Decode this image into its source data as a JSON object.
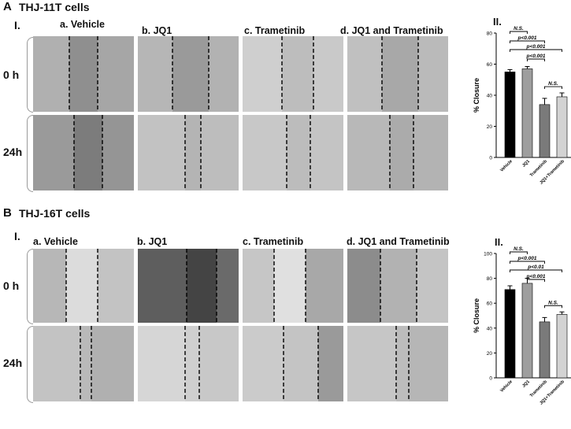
{
  "panels": [
    {
      "letter": "A",
      "title": "THJ-11T cells",
      "images_label": "I.",
      "columns": [
        "a. Vehicle",
        "b. JQ1",
        "c. Trametinib",
        "d. JQ1 and Trametinib"
      ],
      "rows": [
        "0 h",
        "24h"
      ],
      "chart_label": "II."
    },
    {
      "letter": "B",
      "title": "THJ-16T cells",
      "images_label": "I.",
      "columns": [
        "a. Vehicle",
        "b. JQ1",
        "c. Trametinib",
        "d. JQ1 and Trametinib"
      ],
      "rows": [
        "0 h",
        "24h"
      ],
      "chart_label": "II."
    }
  ],
  "chart_data": [
    {
      "type": "bar",
      "ylabel": "% Closure",
      "ylim": [
        0,
        80
      ],
      "yticks": [
        "0",
        "20",
        "40",
        "60",
        "80"
      ],
      "categories": [
        "Vehicle",
        "JQ1",
        "Trametinib",
        "JQ1+Trametinib"
      ],
      "values": [
        55,
        57,
        34,
        39
      ],
      "errors": [
        1.5,
        1.5,
        4,
        2.5
      ],
      "colors": [
        "#000000",
        "#9e9e9e",
        "#7a7a7a",
        "#d3d3d3"
      ],
      "significance": [
        {
          "pair": [
            0,
            1
          ],
          "label": "N.S."
        },
        {
          "pair": [
            0,
            2
          ],
          "label": "p<0.001"
        },
        {
          "pair": [
            0,
            3
          ],
          "label": "p<0.001"
        },
        {
          "pair": [
            1,
            2
          ],
          "label": "p<0.001"
        },
        {
          "pair": [
            2,
            3
          ],
          "label": "N.S."
        }
      ]
    },
    {
      "type": "bar",
      "ylabel": "% Closure",
      "ylim": [
        0,
        100
      ],
      "yticks": [
        "0",
        "20",
        "40",
        "60",
        "80",
        "100"
      ],
      "categories": [
        "Vehicle",
        "JQ1",
        "Trametinib",
        "JQ1+Trametinib"
      ],
      "values": [
        71,
        76,
        45,
        51
      ],
      "errors": [
        3,
        4,
        3.5,
        2
      ],
      "colors": [
        "#000000",
        "#9e9e9e",
        "#7a7a7a",
        "#d3d3d3"
      ],
      "significance": [
        {
          "pair": [
            0,
            1
          ],
          "label": "N.S."
        },
        {
          "pair": [
            0,
            2
          ],
          "label": "p<0.001"
        },
        {
          "pair": [
            0,
            3
          ],
          "label": "p<0.01"
        },
        {
          "pair": [
            1,
            2
          ],
          "label": "p<0.001"
        },
        {
          "pair": [
            2,
            3
          ],
          "label": "N.S."
        }
      ]
    }
  ]
}
